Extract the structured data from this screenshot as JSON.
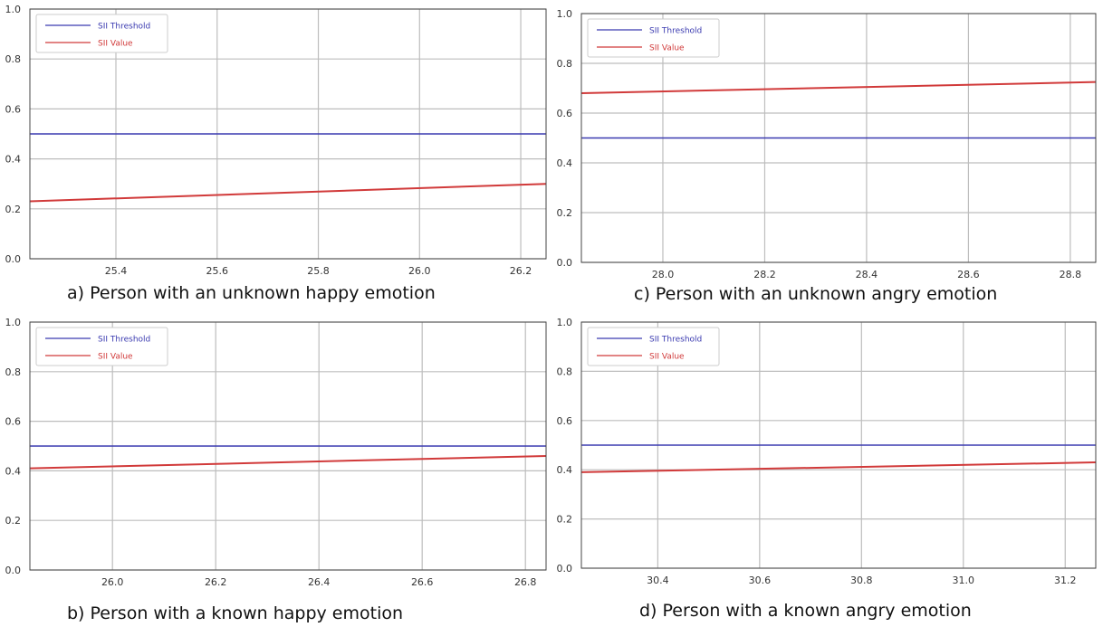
{
  "colors": {
    "threshold": "#3a3ab0",
    "value": "#d13a3a",
    "grid": "#bdbdbd",
    "axis": "#444444",
    "tick_text": "#333333"
  },
  "chart_data": [
    {
      "type": "line",
      "caption": "a) Person with an unknown happy emotion",
      "xlim": [
        25.23,
        26.25
      ],
      "ylim": [
        0.0,
        1.0
      ],
      "xticks": [
        25.4,
        25.6,
        25.8,
        26.0,
        26.2
      ],
      "xtick_labels": [
        "25.4",
        "25.6",
        "25.8",
        "26.0",
        "26.2"
      ],
      "yticks": [
        0.0,
        0.2,
        0.4,
        0.6,
        0.8,
        1.0
      ],
      "ytick_labels": [
        "0.0",
        "0.2",
        "0.4",
        "0.6",
        "0.8",
        "1.0"
      ],
      "grid": true,
      "legend_position": "top-left",
      "series": [
        {
          "name": "SII Threshold",
          "color": "#3a3ab0",
          "x": [
            25.23,
            26.25
          ],
          "y": [
            0.5,
            0.5
          ]
        },
        {
          "name": "SII Value",
          "color": "#d13a3a",
          "x": [
            25.23,
            26.25
          ],
          "y": [
            0.23,
            0.3
          ]
        }
      ]
    },
    {
      "type": "line",
      "caption": "b) Person with a  known happy emotion",
      "xlim": [
        25.84,
        26.84
      ],
      "ylim": [
        0.0,
        1.0
      ],
      "xticks": [
        26.0,
        26.2,
        26.4,
        26.6,
        26.8
      ],
      "xtick_labels": [
        "26.0",
        "26.2",
        "26.4",
        "26.6",
        "26.8"
      ],
      "yticks": [
        0.0,
        0.2,
        0.4,
        0.6,
        0.8,
        1.0
      ],
      "ytick_labels": [
        "0.0",
        "0.2",
        "0.4",
        "0.6",
        "0.8",
        "1.0"
      ],
      "grid": true,
      "legend_position": "top-left",
      "series": [
        {
          "name": "SII Threshold",
          "color": "#3a3ab0",
          "x": [
            25.84,
            26.84
          ],
          "y": [
            0.5,
            0.5
          ]
        },
        {
          "name": "SII Value",
          "color": "#d13a3a",
          "x": [
            25.84,
            26.84
          ],
          "y": [
            0.41,
            0.46
          ]
        }
      ]
    },
    {
      "type": "line",
      "caption": "c) Person with an unknown angry emotion",
      "xlim": [
        27.84,
        28.85
      ],
      "ylim": [
        0.0,
        1.0
      ],
      "xticks": [
        28.0,
        28.2,
        28.4,
        28.6,
        28.8
      ],
      "xtick_labels": [
        "28.0",
        "28.2",
        "28.4",
        "28.6",
        "28.8"
      ],
      "yticks": [
        0.0,
        0.2,
        0.4,
        0.6,
        0.8,
        1.0
      ],
      "ytick_labels": [
        "0.0",
        "0.2",
        "0.4",
        "0.6",
        "0.8",
        "1.0"
      ],
      "grid": true,
      "legend_position": "top-left",
      "series": [
        {
          "name": "SII Threshold",
          "color": "#3a3ab0",
          "x": [
            27.84,
            28.85
          ],
          "y": [
            0.5,
            0.5
          ]
        },
        {
          "name": "SII Value",
          "color": "#d13a3a",
          "x": [
            27.84,
            28.85
          ],
          "y": [
            0.68,
            0.725
          ]
        }
      ]
    },
    {
      "type": "line",
      "caption": "d) Person with a known angry emotion",
      "xlim": [
        30.25,
        31.26
      ],
      "ylim": [
        0.0,
        1.0
      ],
      "xticks": [
        30.4,
        30.6,
        30.8,
        31.0,
        31.2
      ],
      "xtick_labels": [
        "30.4",
        "30.6",
        "30.8",
        "31.0",
        "31.2"
      ],
      "yticks": [
        0.0,
        0.2,
        0.4,
        0.6,
        0.8,
        1.0
      ],
      "ytick_labels": [
        "0.0",
        "0.2",
        "0.4",
        "0.6",
        "0.8",
        "1.0"
      ],
      "grid": true,
      "legend_position": "top-left",
      "series": [
        {
          "name": "SII Threshold",
          "color": "#3a3ab0",
          "x": [
            30.25,
            31.26
          ],
          "y": [
            0.5,
            0.5
          ]
        },
        {
          "name": "SII Value",
          "color": "#d13a3a",
          "x": [
            30.25,
            31.26
          ],
          "y": [
            0.39,
            0.43
          ]
        }
      ]
    }
  ]
}
